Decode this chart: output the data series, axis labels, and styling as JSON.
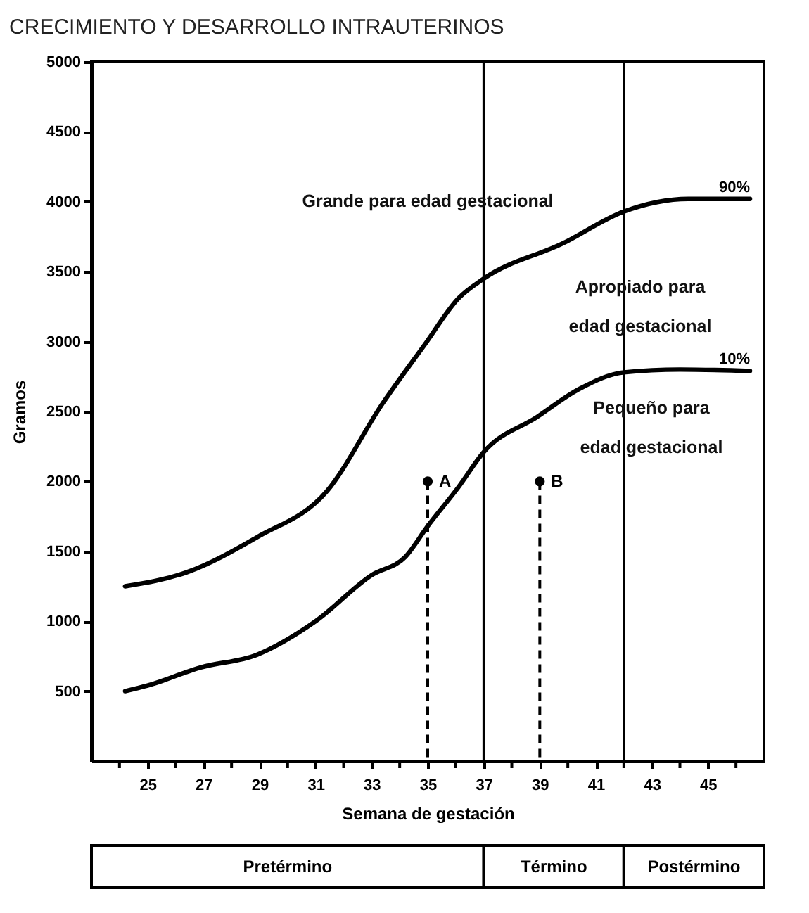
{
  "chart_data": {
    "type": "line",
    "title": "CRECIMIENTO Y DESARROLLO INTRAUTERINOS",
    "xlabel": "Semana de gestación",
    "ylabel": "Gramos",
    "xlim": [
      23,
      47
    ],
    "ylim": [
      0,
      5000
    ],
    "xticks": [
      {
        "value": 24,
        "label": null
      },
      25,
      {
        "value": 26,
        "label": null
      },
      27,
      {
        "value": 28,
        "label": null
      },
      29,
      {
        "value": 30,
        "label": null
      },
      31,
      {
        "value": 32,
        "label": null
      },
      33,
      {
        "value": 34,
        "label": null
      },
      35,
      {
        "value": 36,
        "label": null
      },
      37,
      {
        "value": 38,
        "label": null
      },
      39,
      {
        "value": 40,
        "label": null
      },
      41,
      {
        "value": 42,
        "label": null
      },
      43,
      {
        "value": 44,
        "label": null
      },
      45,
      {
        "value": 46,
        "label": null
      }
    ],
    "yticks": [
      500,
      1000,
      1500,
      2000,
      2500,
      3000,
      3500,
      4000,
      4500,
      5000
    ],
    "grid": false,
    "series": [
      {
        "name": "90%",
        "color": "#000000",
        "x": [
          24.2,
          26.4,
          28.9,
          31.4,
          33.4,
          34.9,
          36.1,
          37,
          39.8,
          42,
          44.3,
          46.5
        ],
        "values": [
          1250,
          1350,
          1600,
          1930,
          2560,
          2980,
          3310,
          3450,
          3700,
          3930,
          4020,
          4020
        ]
      },
      {
        "name": "10%",
        "color": "#000000",
        "x": [
          24.2,
          25,
          26.9,
          28.9,
          31,
          33,
          34.2,
          35,
          36.1,
          37,
          38.9,
          40.4,
          42,
          44,
          46.5
        ],
        "values": [
          500,
          540,
          670,
          760,
          1000,
          1330,
          1460,
          1680,
          1960,
          2210,
          2460,
          2660,
          2780,
          2800,
          2790
        ]
      },
      {
        "name": "A",
        "type": "lollipop",
        "color": "#000000",
        "line_style": "dashed",
        "marker": "circle",
        "x": [
          35
        ],
        "values": [
          2000
        ]
      },
      {
        "name": "B",
        "type": "lollipop",
        "color": "#000000",
        "line_style": "dashed",
        "marker": "circle",
        "x": [
          39
        ],
        "values": [
          2000
        ]
      }
    ],
    "ref_lines": [
      {
        "axis": "x",
        "value": 37,
        "label": null
      },
      {
        "axis": "x",
        "value": 42,
        "label": null
      }
    ],
    "annotations": [
      "Grande para edad gestacional",
      "Apropiado para\nedad gestacional",
      "Pequeño para\nedad gestacional",
      "Pretérmino",
      "Término",
      "Postérmino"
    ]
  }
}
